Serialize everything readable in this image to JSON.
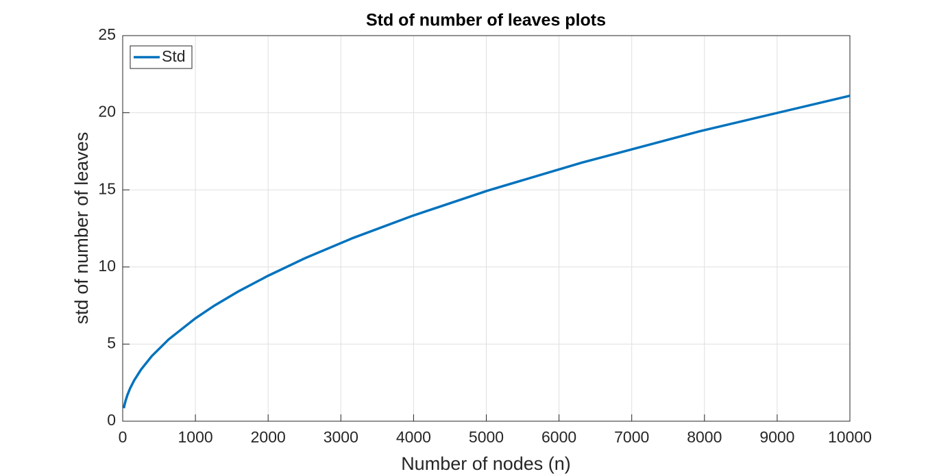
{
  "chart_data": {
    "type": "line",
    "title": "Std of number of leaves plots",
    "x_label": "Number of nodes (n)",
    "y_label": "std of number of leaves",
    "x": [
      16,
      25,
      40,
      63,
      100,
      158,
      251,
      398,
      631,
      1000,
      1259,
      1585,
      1995,
      2512,
      3162,
      3981,
      5012,
      6310,
      7943,
      10000
    ],
    "series": [
      {
        "name": "Std",
        "color": "#0072bd",
        "values": [
          0.84,
          1.06,
          1.33,
          1.67,
          2.11,
          2.65,
          3.34,
          4.21,
          5.3,
          6.67,
          7.49,
          8.4,
          9.42,
          10.58,
          11.87,
          13.31,
          14.94,
          16.76,
          18.81,
          21.1
        ]
      }
    ],
    "xlim": [
      0,
      10000
    ],
    "xticks": [
      0,
      1000,
      2000,
      3000,
      4000,
      5000,
      6000,
      7000,
      8000,
      9000,
      10000
    ],
    "ylim": [
      0,
      25
    ],
    "yticks": [
      0,
      5,
      10,
      15,
      20,
      25
    ],
    "grid": true,
    "legend": "top-left"
  }
}
